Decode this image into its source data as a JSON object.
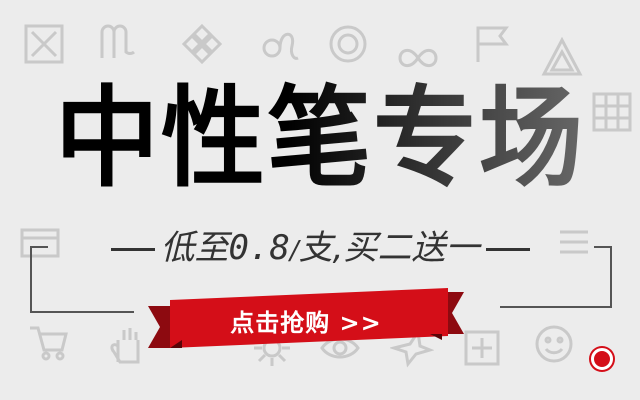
{
  "banner": {
    "headline": "中性笔专场",
    "subline": {
      "prefix": "低至",
      "price": "0.8",
      "slash": "/",
      "unit": "支,买二送一"
    },
    "cta_label": "点击抢购 >>"
  },
  "colors": {
    "background": "#ececec",
    "accent_red": "#d40e18",
    "dark_red": "#8d0a10",
    "text_dark": "#000000"
  },
  "background_icons": [
    "x-box-icon",
    "virgo-icon",
    "diamond-cluster-icon",
    "leo-icon",
    "circle-icon",
    "grid-icon",
    "infinity-icon",
    "flag-icon",
    "triangle-icon",
    "card-icon",
    "eye-icon",
    "gear-icon",
    "shopping-cart-icon",
    "bird-icon",
    "hand-icon",
    "plus-icon",
    "list-icon",
    "smiley-icon"
  ]
}
